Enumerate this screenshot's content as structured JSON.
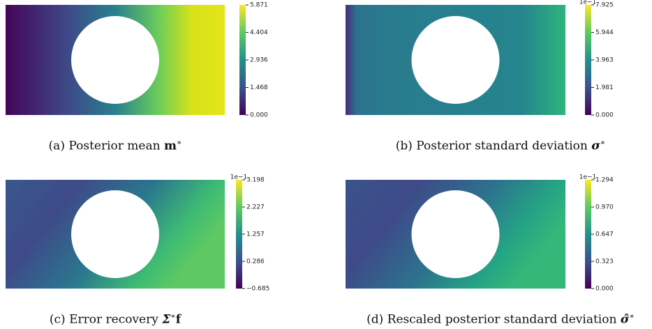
{
  "panels": [
    {
      "colorbar": {
        "range": [
          0,
          5.871
        ],
        "ticks": [
          {
            "value": 0,
            "label": "0.000"
          },
          1.468,
          2.936,
          4.404,
          5.871
        ]
      },
      "caption": {
        "prefix": "(a) Posterior mean",
        "symbol": "m",
        "sup": "∗"
      }
    },
    {
      "colorbar": {
        "scale": "1e−1",
        "range": [
          0,
          7.925
        ],
        "ticks": [
          {
            "value": 0,
            "label": "0.000"
          },
          1.981,
          3.963,
          5.944,
          7.925
        ]
      },
      "caption": {
        "prefix": "(b) Posterior standard deviation",
        "symbol": "σ",
        "sup": "∗"
      }
    },
    {
      "colorbar": {
        "scale": "1e−1",
        "range": [
          -0.685,
          3.198
        ],
        "ticks": [
          {
            "value": -0.685,
            "label": "−0.685"
          },
          0.286,
          1.257,
          2.227,
          3.198
        ]
      },
      "caption": {
        "prefix": "(c) Error recovery",
        "symbol": "Σ",
        "sup": "∗",
        "suffix": "f"
      }
    },
    {
      "colorbar": {
        "scale": "1e−1",
        "range": [
          0,
          1.294
        ],
        "ticks": [
          {
            "value": 0,
            "label": "0.000"
          },
          0.323,
          {
            "value": 0.647,
            "label": "0.647"
          },
          {
            "value": 0.97,
            "label": "0.970"
          },
          1.294
        ]
      },
      "caption": {
        "prefix": "(d) Rescaled posterior standard deviation",
        "symbol": "σ̂",
        "sup": "∗"
      }
    }
  ]
}
